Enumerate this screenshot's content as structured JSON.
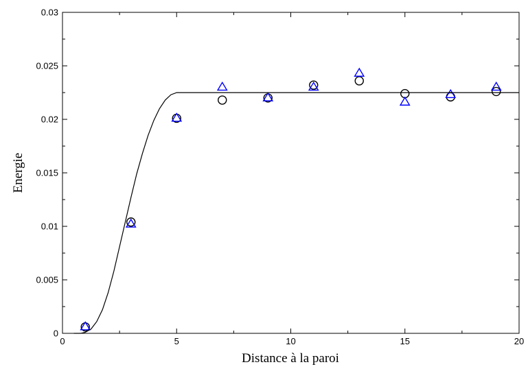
{
  "chart_data": {
    "type": "scatter",
    "title": "",
    "xlabel": "Distance à la paroi",
    "ylabel": "Energie",
    "xlim": [
      0,
      20
    ],
    "ylim": [
      0,
      0.03
    ],
    "grid": false,
    "x_ticks": [
      "0",
      "5",
      "10",
      "15",
      "20"
    ],
    "y_ticks": [
      "0",
      "0.005",
      "0.01",
      "0.015",
      "0.02",
      "0.025",
      "0.03"
    ],
    "series": [
      {
        "marker": "circle",
        "color": "#000000",
        "x": [
          1,
          3,
          5,
          7,
          9,
          11,
          13,
          15,
          17,
          19
        ],
        "y": [
          0.0006,
          0.0104,
          0.0201,
          0.0218,
          0.022,
          0.0232,
          0.0236,
          0.0224,
          0.0221,
          0.0226
        ]
      },
      {
        "marker": "triangle",
        "color": "#0000ff",
        "x": [
          1,
          3,
          5,
          7,
          9,
          11,
          13,
          15,
          17,
          19
        ],
        "y": [
          0.0006,
          0.0102,
          0.0201,
          0.023,
          0.022,
          0.023,
          0.0243,
          0.0216,
          0.0223,
          0.023
        ]
      },
      {
        "marker": "none",
        "color": "#000000",
        "style": "line",
        "x": [
          0.5,
          0.8,
          1,
          1.25,
          1.5,
          1.75,
          2,
          2.25,
          2.5,
          2.75,
          3,
          3.25,
          3.5,
          3.75,
          4,
          4.25,
          4.5,
          4.75,
          5,
          6,
          8,
          10,
          12,
          14,
          16,
          18,
          20
        ],
        "y": [
          0.0,
          0.0,
          0.0001,
          0.0004,
          0.0011,
          0.0022,
          0.0038,
          0.0058,
          0.0081,
          0.0104,
          0.0127,
          0.0149,
          0.0168,
          0.0185,
          0.0199,
          0.021,
          0.0218,
          0.0223,
          0.0225,
          0.0225,
          0.0225,
          0.0225,
          0.0225,
          0.0225,
          0.0225,
          0.0225,
          0.0225
        ]
      }
    ]
  }
}
